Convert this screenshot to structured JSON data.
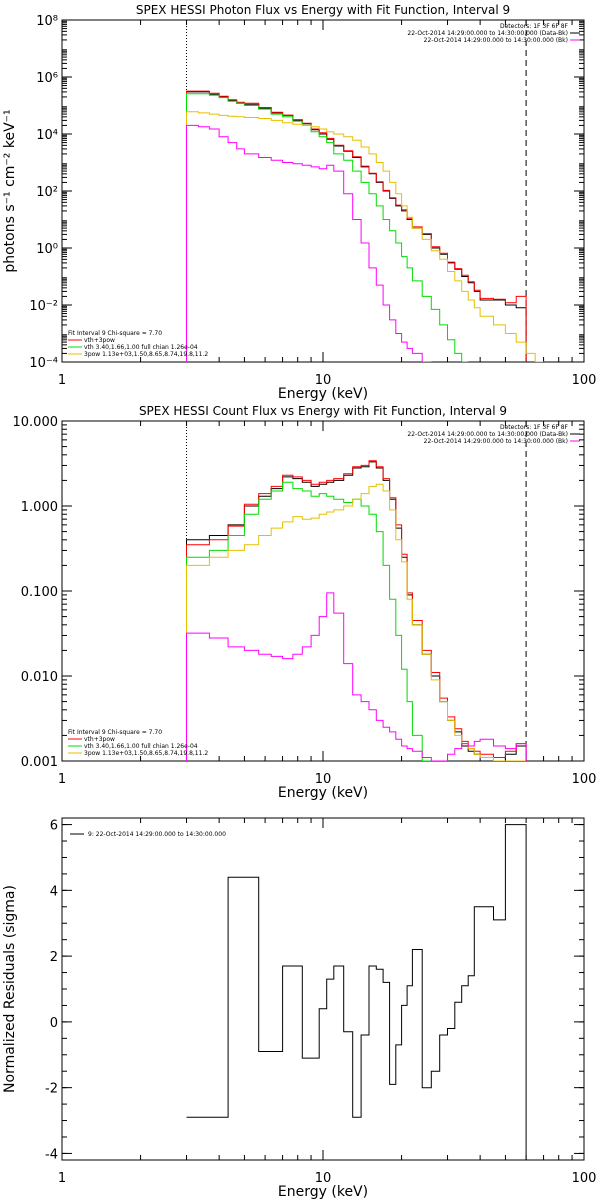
{
  "chart_data": [
    {
      "type": "line",
      "title": "SPEX HESSI Photon Flux vs Energy with Fit Function, Interval 9",
      "xlabel": "Energy (keV)",
      "ylabel": "photons s⁻¹ cm⁻² keV⁻¹",
      "xscale": "log",
      "yscale": "log",
      "xlim": [
        1,
        100
      ],
      "ylim": [
        0.0001,
        100000000
      ],
      "xticks": [
        {
          "v": 1,
          "label": "1"
        },
        {
          "v": 10,
          "label": "10"
        },
        {
          "v": 100,
          "label": "100"
        }
      ],
      "yticks": [
        {
          "v": 0.0001,
          "label": "10⁻⁴"
        },
        {
          "v": 0.01,
          "label": "10⁻²"
        },
        {
          "v": 1,
          "label": "10⁰"
        },
        {
          "v": 100,
          "label": "10²"
        },
        {
          "v": 10000,
          "label": "10⁴"
        },
        {
          "v": 1000000,
          "label": "10⁶"
        },
        {
          "v": 100000000,
          "label": "10⁸"
        }
      ],
      "vlines": [
        {
          "x": 3,
          "style": "dotted",
          "color": "#000000"
        },
        {
          "x": 60,
          "style": "dashed",
          "color": "#000000"
        }
      ],
      "legend_top": [
        "Detectors: 1F 3F 6F 8F",
        "22-Oct-2014 14:29:00.000 to 14:30:00.000 (Data-Bk)",
        "22-Oct-2014 14:29:00.000 to 14:30:00.000 (Bk)"
      ],
      "legend_top_colors": [
        "",
        "#000000",
        "#ff00ff"
      ],
      "legend_bottom": [
        "Fit Interval 9   Chi-square = 7.70",
        "vth+3pow",
        "vth 3.40,1.66,1.00  full chian 1.26e-04",
        "3pow 1.13e+03,1.50,8.65,8.74,19.8,11.2"
      ],
      "legend_bottom_colors": [
        "",
        "#ff0000",
        "#00dd00",
        "#e6c000"
      ],
      "edges": [
        3,
        3.33,
        3.67,
        4,
        4.33,
        4.67,
        5,
        5.67,
        6.33,
        7,
        7.67,
        8.33,
        9,
        9.67,
        10.33,
        11,
        12,
        13,
        14,
        15,
        16,
        17,
        18,
        19,
        20,
        21,
        22,
        24,
        26,
        28,
        30,
        32,
        34,
        36,
        38,
        40,
        45,
        50,
        55,
        60,
        65,
        70
      ],
      "series": [
        {
          "name": "22-Oct-2014 14:29:00.000 to 14:30:00.000 (Data-Bk)",
          "color": "#000000",
          "values": [
            300000,
            300000,
            250000,
            200000,
            150000,
            120000,
            110000,
            80000,
            55000,
            45000,
            30000,
            23000,
            14000,
            10000,
            6500,
            3800,
            2500,
            1500,
            700,
            400,
            200,
            100,
            55,
            30,
            20,
            10,
            5,
            3,
            1,
            0.6,
            0.3,
            0.18,
            0.1,
            0.06,
            0.03,
            0.015,
            0.015,
            0.01,
            0.008,
            null,
            null
          ]
        },
        {
          "name": "vth+3pow",
          "color": "#ff0000",
          "values": [
            320000,
            320000,
            270000,
            210000,
            160000,
            130000,
            120000,
            85000,
            58000,
            46000,
            32000,
            24000,
            15000,
            11000,
            7000,
            4000,
            2600,
            1600,
            750,
            420,
            210,
            105,
            58,
            32,
            22,
            11,
            5.5,
            3.2,
            1.1,
            0.65,
            0.32,
            0.19,
            0.11,
            0.065,
            0.033,
            0.017,
            0.016,
            0.012,
            0.02,
            null,
            null
          ]
        },
        {
          "name": "vth 3.40,1.66,1.00  full chian 1.26e-04",
          "color": "#00dd00",
          "values": [
            260000,
            260000,
            230000,
            190000,
            140000,
            120000,
            100000,
            75000,
            50000,
            40000,
            28000,
            20000,
            12000,
            8000,
            5000,
            2000,
            1200,
            500,
            200,
            80,
            30,
            10,
            4,
            1.5,
            0.5,
            0.2,
            0.07,
            0.02,
            0.007,
            0.002,
            0.0006,
            0.0002,
            0.0001,
            null,
            null,
            null,
            null,
            null,
            null,
            null,
            null
          ]
        },
        {
          "name": "3pow 1.13e+03,1.50,8.65,8.74,19.8,11.2",
          "color": "#e6c000",
          "values": [
            60000,
            55000,
            50000,
            45000,
            42000,
            40000,
            38000,
            35000,
            30000,
            25000,
            22000,
            20000,
            18000,
            15000,
            12000,
            10000,
            8000,
            6000,
            3500,
            2000,
            1000,
            500,
            200,
            80,
            30,
            12,
            5,
            2,
            0.8,
            0.4,
            0.15,
            0.07,
            0.03,
            0.015,
            0.008,
            0.004,
            0.002,
            0.001,
            0.0005,
            0.0002,
            0.0001
          ]
        },
        {
          "name": "22-Oct-2014 14:29:00.000 to 14:30:00.000 (Bk)",
          "color": "#ff00ff",
          "values": [
            20000,
            18000,
            15000,
            8000,
            5000,
            3000,
            2000,
            1500,
            1200,
            1000,
            900,
            800,
            700,
            600,
            800,
            500,
            80,
            10,
            1.5,
            0.2,
            0.05,
            0.01,
            0.003,
            0.001,
            0.0005,
            0.0003,
            0.0002,
            0.0001,
            null,
            null,
            null,
            null,
            null,
            null,
            null,
            null,
            null,
            null,
            null,
            null,
            null
          ]
        }
      ]
    },
    {
      "type": "line",
      "title": "SPEX HESSI Count Flux vs Energy with Fit Function, Interval 9",
      "xlabel": "Energy (keV)",
      "ylabel": "",
      "xscale": "log",
      "yscale": "log",
      "xlim": [
        1,
        100
      ],
      "ylim": [
        0.001,
        10
      ],
      "xticks": [
        {
          "v": 1,
          "label": "1"
        },
        {
          "v": 10,
          "label": "10"
        },
        {
          "v": 100,
          "label": "100"
        }
      ],
      "yticks": [
        {
          "v": 0.001,
          "label": "0.001"
        },
        {
          "v": 0.01,
          "label": "0.010"
        },
        {
          "v": 0.1,
          "label": "0.100"
        },
        {
          "v": 1,
          "label": "1.000"
        },
        {
          "v": 10,
          "label": "10.000"
        }
      ],
      "vlines": [
        {
          "x": 3,
          "style": "dotted",
          "color": "#000000"
        },
        {
          "x": 60,
          "style": "dashed",
          "color": "#000000"
        }
      ],
      "legend_top": [
        "Detectors: 1F 3F 6F 8F",
        "22-Oct-2014 14:29:00.000 to 14:30:00.000 (Data-Bk)",
        "22-Oct-2014 14:29:00.000 to 14:30:00.000 (Bk)"
      ],
      "legend_top_colors": [
        "",
        "#000000",
        "#ff00ff"
      ],
      "legend_bottom": [
        "Fit Interval 9   Chi-square = 7.70",
        "vth+3pow",
        "vth 3.40,1.66,1.00  full chian 1.26e-04",
        "3pow 1.13e+03,1.50,8.65,8.74,19.8,11.2"
      ],
      "legend_bottom_colors": [
        "",
        "#ff0000",
        "#00dd00",
        "#e6c000"
      ],
      "edges": [
        3,
        3.67,
        4.33,
        5,
        5.67,
        6.33,
        7,
        7.67,
        8.33,
        9,
        9.67,
        10.33,
        11,
        12,
        13,
        14,
        15,
        16,
        17,
        18,
        19,
        20,
        21,
        22,
        24,
        26,
        28,
        30,
        32,
        34,
        36,
        38,
        40,
        45,
        50,
        55,
        60
      ],
      "series": [
        {
          "name": "22-Oct-2014 14:29:00.000 to 14:30:00.000 (Data-Bk)",
          "color": "#000000",
          "values": [
            0.4,
            0.45,
            0.6,
            1.0,
            1.3,
            1.6,
            2.2,
            2.1,
            1.9,
            1.7,
            1.8,
            1.9,
            2.0,
            2.3,
            2.8,
            2.9,
            3.3,
            2.8,
            2.0,
            1.2,
            0.55,
            0.25,
            0.09,
            0.04,
            0.018,
            0.01,
            0.005,
            0.003,
            0.0022,
            0.0015,
            0.0013,
            0.0012,
            0.0011,
            0.001,
            0.0012,
            0.0015
          ]
        },
        {
          "name": "vth+3pow",
          "color": "#ff0000",
          "values": [
            0.35,
            0.4,
            0.58,
            1.05,
            1.4,
            1.7,
            2.3,
            2.2,
            2.0,
            1.8,
            1.9,
            2.0,
            2.1,
            2.4,
            2.9,
            3.0,
            3.4,
            2.9,
            2.1,
            1.25,
            0.6,
            0.27,
            0.095,
            0.045,
            0.02,
            0.011,
            0.0055,
            0.0033,
            0.0024,
            0.0017,
            0.0014,
            0.0013,
            0.0012,
            0.0011,
            0.0013,
            0.0016
          ]
        },
        {
          "name": "vth 3.40,1.66,1.00  full chian 1.26e-04",
          "color": "#00dd00",
          "values": [
            0.25,
            0.3,
            0.45,
            0.8,
            1.2,
            1.5,
            1.9,
            1.6,
            1.5,
            1.3,
            1.4,
            1.3,
            1.2,
            1.1,
            1.2,
            1.0,
            0.8,
            0.5,
            0.2,
            0.08,
            0.03,
            0.012,
            0.005,
            0.002,
            0.001,
            0.0005,
            null,
            null,
            null,
            null,
            null,
            null,
            null,
            null,
            null,
            null
          ]
        },
        {
          "name": "3pow 1.13e+03,1.50,8.65,8.74,19.8,11.2",
          "color": "#e6c000",
          "values": [
            0.2,
            0.25,
            0.3,
            0.35,
            0.45,
            0.55,
            0.65,
            0.75,
            0.7,
            0.72,
            0.8,
            0.85,
            0.9,
            1.0,
            1.2,
            1.4,
            1.7,
            1.8,
            1.5,
            0.9,
            0.4,
            0.22,
            0.08,
            0.04,
            0.018,
            0.009,
            0.005,
            0.003,
            0.002,
            0.0016,
            0.0014,
            0.0012,
            0.0011,
            0.001,
            0.0009,
            0.0008
          ]
        },
        {
          "name": "22-Oct-2014 14:29:00.000 to 14:30:00.000 (Bk)",
          "color": "#ff00ff",
          "values": [
            0.032,
            0.028,
            0.022,
            0.02,
            0.018,
            0.017,
            0.016,
            0.018,
            0.022,
            0.03,
            0.05,
            0.095,
            0.055,
            0.014,
            0.006,
            0.005,
            0.004,
            0.003,
            0.0025,
            0.0022,
            0.0018,
            0.0015,
            0.0014,
            0.0013,
            0.0011,
            0.0009,
            0.0008,
            0.0012,
            0.0014,
            0.0016,
            0.0015,
            0.0017,
            0.0018,
            0.0015,
            0.0014,
            0.0016
          ]
        }
      ]
    },
    {
      "type": "line",
      "title": "",
      "xlabel": "Energy (keV)",
      "ylabel": "Normalized Residuals (sigma)",
      "xscale": "log",
      "yscale": "linear",
      "xlim": [
        1,
        100
      ],
      "ylim": [
        -4.2,
        6.2
      ],
      "xticks": [
        {
          "v": 1,
          "label": "1"
        },
        {
          "v": 10,
          "label": "10"
        },
        {
          "v": 100,
          "label": "100"
        }
      ],
      "yticks": [
        {
          "v": -4,
          "label": "-4"
        },
        {
          "v": -2,
          "label": "-2"
        },
        {
          "v": 0,
          "label": "0"
        },
        {
          "v": 2,
          "label": "2"
        },
        {
          "v": 4,
          "label": "4"
        },
        {
          "v": 6,
          "label": "6"
        }
      ],
      "legend_top": [
        "9: 22-Oct-2014 14:29:00.000 to 14:30:00.000"
      ],
      "edges": [
        3,
        3.67,
        4.33,
        5,
        5.67,
        6.33,
        7,
        7.67,
        8.33,
        9,
        9.67,
        10.33,
        11,
        12,
        13,
        14,
        15,
        16,
        17,
        18,
        19,
        20,
        21,
        22,
        24,
        26,
        28,
        30,
        32,
        34,
        36,
        38,
        40,
        45,
        50,
        55,
        60
      ],
      "series": [
        {
          "name": "9: 22-Oct-2014 14:29:00.000 to 14:30:00.000",
          "color": "#000000",
          "values": [
            -2.9,
            -2.9,
            4.4,
            4.4,
            -0.9,
            -0.9,
            1.7,
            1.7,
            -1.1,
            -1.1,
            0.4,
            1.3,
            1.7,
            -0.3,
            -2.9,
            -0.4,
            1.7,
            1.6,
            1.2,
            -1.9,
            -0.7,
            0.5,
            1.1,
            2.2,
            -2.0,
            -1.5,
            -0.4,
            -0.2,
            0.6,
            1.1,
            1.4,
            3.5,
            3.5,
            3.1,
            6.0,
            6.0
          ]
        }
      ]
    }
  ]
}
